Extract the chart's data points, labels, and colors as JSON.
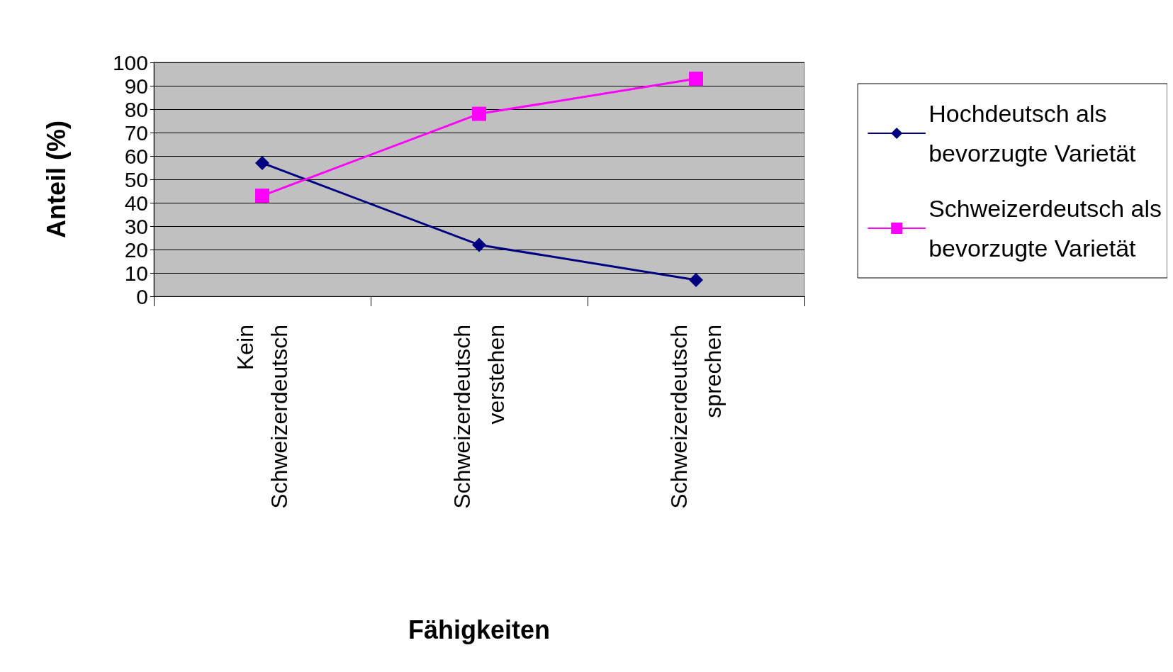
{
  "chart_data": {
    "type": "line",
    "xlabel": "Fähigkeiten",
    "ylabel": "Anteil (%)",
    "categories": [
      "Kein Schweizerdeutsch",
      "Schweizerdeutsch verstehen",
      "Schweizerdeutsch sprechen"
    ],
    "series": [
      {
        "name": "Hochdeutsch als bevorzugte Varietät",
        "color": "#000080",
        "marker": "diamond",
        "values": [
          57,
          22,
          7
        ]
      },
      {
        "name": "Schweizerdeutsch als bevorzugte Varietät",
        "color": "#ff00ff",
        "marker": "square",
        "values": [
          43,
          78,
          93
        ]
      }
    ],
    "ylim": [
      0,
      100
    ],
    "yticks": [
      0,
      10,
      20,
      30,
      40,
      50,
      60,
      70,
      80,
      90,
      100
    ],
    "grid": "y",
    "legend": "right",
    "line_style": "solid"
  }
}
